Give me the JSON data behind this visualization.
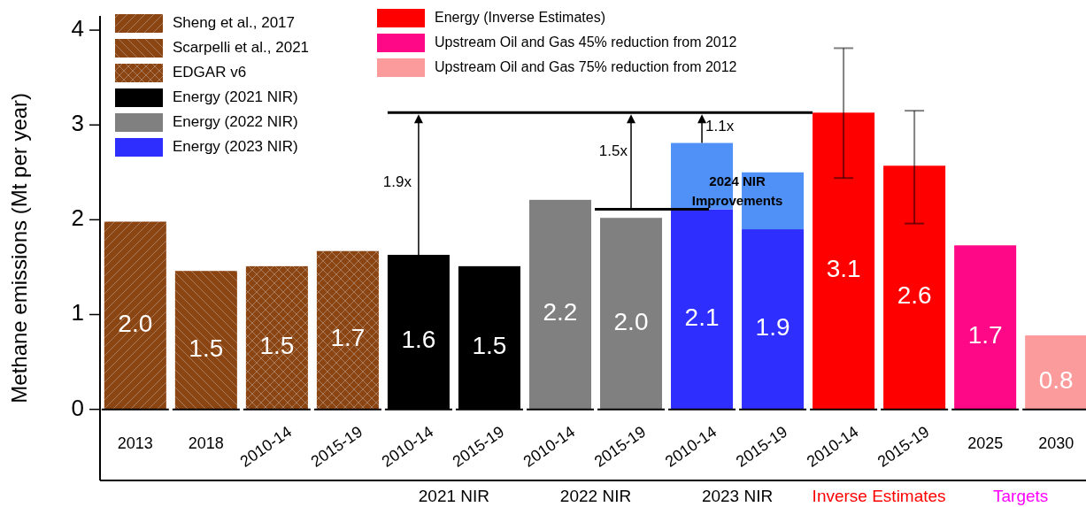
{
  "chart_data": {
    "type": "bar",
    "stacked": true,
    "ylabel": "Methane emissions (Mt per year)",
    "categories": [
      "2013",
      "2018",
      "2010-14",
      "2015-19",
      "2010-14",
      "2015-19",
      "2010-14",
      "2015-19",
      "2010-14",
      "2015-19",
      "2010-14",
      "2015-19",
      "2025",
      "2030"
    ],
    "ylim": [
      -0.75,
      4.15
    ],
    "yticks": [
      0,
      1,
      2,
      3,
      4
    ],
    "legend": "top left",
    "grid": false,
    "series": [
      {
        "name": "Sheng et al., 2017",
        "color": "#8b4513",
        "values": [
          1.98,
          null,
          null,
          null,
          null,
          null,
          null,
          null,
          null,
          null,
          null,
          null,
          null,
          null
        ],
        "value_labels": [
          "2.0",
          null,
          null,
          null,
          null,
          null,
          null,
          null,
          null,
          null,
          null,
          null,
          null,
          null
        ]
      },
      {
        "name": "Scarpelli et al., 2021",
        "color": "#8b4513",
        "values": [
          null,
          1.46,
          null,
          null,
          null,
          null,
          null,
          null,
          null,
          null,
          null,
          null,
          null,
          null
        ],
        "value_labels": [
          null,
          "1.5",
          null,
          null,
          null,
          null,
          null,
          null,
          null,
          null,
          null,
          null,
          null,
          null
        ]
      },
      {
        "name": "EDGAR v6",
        "color": "#8b4513",
        "values": [
          null,
          null,
          1.51,
          1.67,
          null,
          null,
          null,
          null,
          null,
          null,
          null,
          null,
          null,
          null
        ],
        "value_labels": [
          null,
          null,
          "1.5",
          "1.7",
          null,
          null,
          null,
          null,
          null,
          null,
          null,
          null,
          null,
          null
        ]
      },
      {
        "name": "Energy (2021 NIR)",
        "color": "#000000",
        "values": [
          null,
          null,
          null,
          null,
          1.63,
          1.51,
          null,
          null,
          null,
          null,
          null,
          null,
          null,
          null
        ],
        "value_labels": [
          null,
          null,
          null,
          null,
          "1.6",
          "1.5",
          null,
          null,
          null,
          null,
          null,
          null,
          null,
          null
        ]
      },
      {
        "name": "Energy (2022 NIR)",
        "color": "#808080",
        "values": [
          null,
          null,
          null,
          null,
          null,
          null,
          2.21,
          2.02,
          null,
          null,
          null,
          null,
          null,
          null
        ],
        "value_labels": [
          null,
          null,
          null,
          null,
          null,
          null,
          "2.2",
          "2.0",
          null,
          null,
          null,
          null,
          null,
          null
        ]
      },
      {
        "name": "Energy (2023 NIR)",
        "color": "#2e2efe",
        "values": [
          null,
          null,
          null,
          null,
          null,
          null,
          null,
          null,
          2.11,
          1.9,
          null,
          null,
          null,
          null
        ],
        "value_labels": [
          null,
          null,
          null,
          null,
          null,
          null,
          null,
          null,
          "2.1",
          "1.9",
          null,
          null,
          null,
          null
        ]
      },
      {
        "color": "#4f91f7",
        "values": [
          null,
          null,
          null,
          null,
          null,
          null,
          null,
          null,
          0.7,
          0.6,
          null,
          null,
          null,
          null
        ]
      },
      {
        "name": "Energy (Inverse Estimates)",
        "color": "#ff0000",
        "values": [
          null,
          null,
          null,
          null,
          null,
          null,
          null,
          null,
          null,
          null,
          3.13,
          2.57,
          null,
          null
        ],
        "value_labels": [
          null,
          null,
          null,
          null,
          null,
          null,
          null,
          null,
          null,
          null,
          "3.1",
          "2.6",
          null,
          null
        ],
        "errors": [
          null,
          null,
          null,
          null,
          null,
          null,
          null,
          null,
          null,
          null,
          [
            2.44,
            3.81
          ],
          [
            1.96,
            3.15
          ],
          null,
          null
        ]
      },
      {
        "name": "Upstream Oil and Gas 45% reduction from 2012",
        "color": "#ff0888",
        "values": [
          null,
          null,
          null,
          null,
          null,
          null,
          null,
          null,
          null,
          null,
          null,
          null,
          1.73,
          null
        ],
        "value_labels": [
          null,
          null,
          null,
          null,
          null,
          null,
          null,
          null,
          null,
          null,
          null,
          null,
          "1.7",
          null
        ]
      },
      {
        "name": "Upstream Oil and Gas 75% reduction from 2012",
        "color": "#fc9b9b",
        "values": [
          null,
          null,
          null,
          null,
          null,
          null,
          null,
          null,
          null,
          null,
          null,
          null,
          null,
          0.78
        ],
        "value_labels": [
          null,
          null,
          null,
          null,
          null,
          null,
          null,
          null,
          null,
          null,
          null,
          null,
          null,
          "0.8"
        ]
      }
    ],
    "ref_lines": [
      {
        "axis": "y",
        "value": 3.13,
        "color": "#000000"
      },
      {
        "axis": "y",
        "value": 2.11,
        "color": "#000000"
      }
    ],
    "annotations": [
      "1.9x",
      "1.5x",
      "1.1x",
      "2024 NIR Improvements",
      "2021 NIR",
      "2022 NIR",
      "2023 NIR",
      "Inverse Estimates",
      "Targets"
    ]
  }
}
